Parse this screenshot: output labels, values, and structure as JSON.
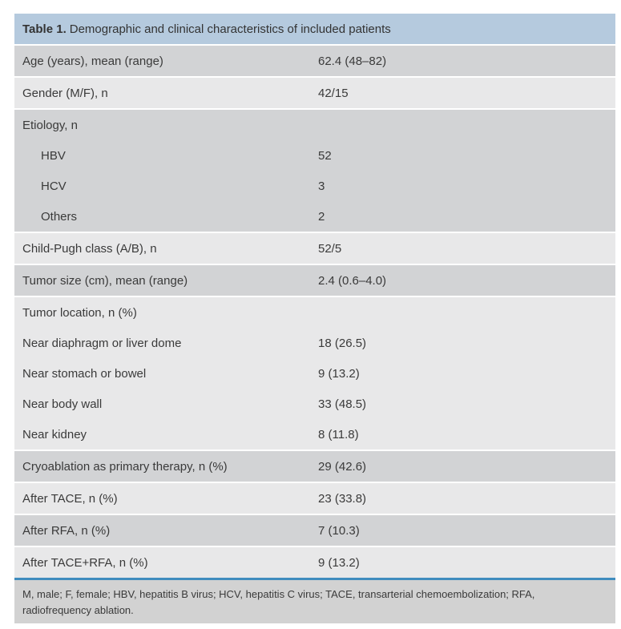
{
  "table": {
    "title_bold": "Table 1.",
    "title_rest": "Demographic and clinical characteristics of included patients",
    "blocks": [
      {
        "shade": "dark",
        "lines": [
          {
            "label": "Age (years), mean (range)",
            "value": "62.4 (48–82)"
          }
        ]
      },
      {
        "shade": "light",
        "lines": [
          {
            "label": "Gender (M/F), n",
            "value": "42/15"
          }
        ]
      },
      {
        "shade": "dark",
        "lines": [
          {
            "label": "Etiology, n",
            "value": ""
          },
          {
            "label": "HBV",
            "value": "52",
            "indent": true
          },
          {
            "label": "HCV",
            "value": "3",
            "indent": true
          },
          {
            "label": "Others",
            "value": "2",
            "indent": true
          }
        ]
      },
      {
        "shade": "light",
        "lines": [
          {
            "label": "Child-Pugh class (A/B), n",
            "value": "52/5"
          }
        ]
      },
      {
        "shade": "dark",
        "lines": [
          {
            "label": "Tumor size (cm), mean (range)",
            "value": "2.4 (0.6–4.0)"
          }
        ]
      },
      {
        "shade": "light",
        "lines": [
          {
            "label": "Tumor location, n (%)",
            "value": ""
          },
          {
            "label": "Near diaphragm or liver dome",
            "value": "18 (26.5)"
          },
          {
            "label": "Near stomach or bowel",
            "value": "9 (13.2)"
          },
          {
            "label": "Near body wall",
            "value": "33 (48.5)"
          },
          {
            "label": "Near kidney",
            "value": "8 (11.8)"
          }
        ]
      },
      {
        "shade": "dark",
        "lines": [
          {
            "label": "Cryoablation as primary therapy, n (%)",
            "value": "29 (42.6)"
          }
        ]
      },
      {
        "shade": "light",
        "lines": [
          {
            "label": "After TACE, n (%)",
            "value": "23 (33.8)"
          }
        ]
      },
      {
        "shade": "dark",
        "lines": [
          {
            "label": "After RFA, n (%)",
            "value": "7 (10.3)"
          }
        ]
      },
      {
        "shade": "light",
        "lines": [
          {
            "label": "After TACE+RFA, n (%)",
            "value": "9 (13.2)"
          }
        ]
      }
    ],
    "footnote": "M, male; F, female; HBV, hepatitis B virus; HCV, hepatitis C virus; TACE, transarterial chemoembolization; RFA, radiofrequency ablation.",
    "colors": {
      "header_bg": "#b5cade",
      "row_dark": "#d2d3d5",
      "row_light": "#e8e8e9",
      "footer_bg": "#d2d2d2",
      "accent_line": "#3f8cbe"
    }
  }
}
